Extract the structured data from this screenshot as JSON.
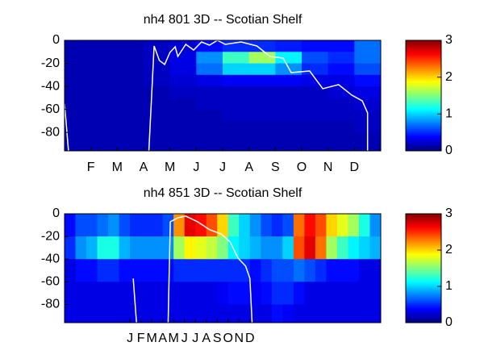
{
  "chart_data": [
    {
      "type": "heatmap",
      "title": "nh4  801 3D   -- Scotian Shelf",
      "colormap": "jet",
      "xlim": [
        0,
        12
      ],
      "ylim": [
        -96,
        0
      ],
      "xticks": [
        {
          "value": 1,
          "label": "F"
        },
        {
          "value": 2,
          "label": "M"
        },
        {
          "value": 3,
          "label": "A"
        },
        {
          "value": 4,
          "label": "M"
        },
        {
          "value": 5,
          "label": "J"
        },
        {
          "value": 6,
          "label": "J"
        },
        {
          "value": 7,
          "label": "A"
        },
        {
          "value": 8,
          "label": "S"
        },
        {
          "value": 9,
          "label": "O"
        },
        {
          "value": 10,
          "label": "N"
        },
        {
          "value": 11,
          "label": "D"
        }
      ],
      "yticks": [
        0,
        -20,
        -40,
        -60,
        -80
      ],
      "clim": [
        0,
        3
      ],
      "cticks": [
        0,
        1,
        2,
        3
      ],
      "xbins": [
        0,
        1,
        2,
        3,
        4,
        5,
        6,
        7,
        8,
        9,
        10,
        11,
        12
      ],
      "ybins": [
        0,
        -10,
        -20,
        -30,
        -40,
        -50,
        -60,
        -70,
        -80,
        -90,
        -96
      ],
      "z": [
        [
          0.15,
          0.15,
          0.15,
          0.2,
          0.25,
          0.4,
          0.5,
          0.5,
          0.45,
          0.4,
          0.4,
          0.7
        ],
        [
          0.15,
          0.15,
          0.15,
          0.2,
          0.3,
          0.8,
          1.3,
          1.6,
          1.1,
          0.6,
          0.5,
          0.7
        ],
        [
          0.15,
          0.15,
          0.15,
          0.2,
          0.3,
          0.7,
          1.0,
          1.0,
          0.8,
          0.5,
          0.4,
          0.6
        ],
        [
          0.15,
          0.15,
          0.15,
          0.2,
          0.25,
          0.3,
          0.35,
          0.35,
          0.35,
          0.3,
          0.3,
          0.4
        ],
        [
          0.15,
          0.15,
          0.15,
          0.15,
          0.2,
          0.2,
          0.2,
          0.2,
          0.2,
          0.2,
          0.25,
          0.3
        ],
        [
          0.15,
          0.15,
          0.15,
          0.15,
          0.15,
          0.2,
          0.2,
          0.2,
          0.2,
          0.2,
          0.2,
          0.25
        ],
        [
          0.15,
          0.15,
          0.15,
          0.15,
          0.15,
          0.15,
          0.2,
          0.2,
          0.2,
          0.2,
          0.2,
          0.2
        ],
        [
          0.15,
          0.15,
          0.15,
          0.15,
          0.15,
          0.15,
          0.15,
          0.15,
          0.15,
          0.15,
          0.15,
          0.2
        ],
        [
          0.15,
          0.15,
          0.15,
          0.15,
          0.15,
          0.15,
          0.15,
          0.15,
          0.15,
          0.15,
          0.15,
          0.15
        ],
        [
          0.15,
          0.15,
          0.15,
          0.15,
          0.15,
          0.15,
          0.15,
          0.15,
          0.15,
          0.15,
          0.15,
          0.15
        ]
      ],
      "contour_color": "#ffffff",
      "contours": [
        {
          "x": [
            0,
            0.15
          ],
          "y": [
            -55,
            -96
          ]
        },
        {
          "x": [
            3.2,
            3.4,
            3.6,
            3.8,
            4.0,
            4.2,
            4.3,
            4.6,
            4.9,
            5.2,
            5.5,
            5.8,
            6.1,
            6.7,
            7.3,
            7.8,
            8.3,
            8.6,
            9.3,
            9.8,
            10.4,
            10.9,
            11.3,
            11.5,
            11.5
          ],
          "y": [
            -96,
            -4.9,
            -17.5,
            -21,
            -10.5,
            -5.6,
            -14,
            -3.5,
            -8.4,
            -1.4,
            -4.2,
            0,
            -3.5,
            -1.4,
            -4.9,
            -14,
            -15.4,
            -28,
            -26.6,
            -42,
            -38.5,
            -47.6,
            -52.6,
            -63,
            -96
          ]
        }
      ]
    },
    {
      "type": "heatmap",
      "title": "nh4  851 3D   -- Scotian Shelf",
      "colormap": "jet",
      "xlim": [
        0,
        29
      ],
      "ylim": [
        -96,
        0
      ],
      "xticks": [
        {
          "value": 6,
          "label": "J"
        },
        {
          "value": 7,
          "label": "F"
        },
        {
          "value": 8,
          "label": "M"
        },
        {
          "value": 9,
          "label": "A"
        },
        {
          "value": 10,
          "label": "M"
        },
        {
          "value": 11,
          "label": "J"
        },
        {
          "value": 12,
          "label": "J"
        },
        {
          "value": 13,
          "label": "A"
        },
        {
          "value": 14,
          "label": "S"
        },
        {
          "value": 15,
          "label": "O"
        },
        {
          "value": 16,
          "label": "N"
        },
        {
          "value": 17,
          "label": "D"
        }
      ],
      "yticks": [
        0,
        -20,
        -40,
        -60,
        -80
      ],
      "clim": [
        0,
        3
      ],
      "cticks": [
        0,
        1,
        2,
        3
      ],
      "xbins": [
        0,
        1,
        2,
        3,
        4,
        5,
        6,
        7,
        8,
        9,
        10,
        11,
        12,
        13,
        14,
        15,
        16,
        17,
        18,
        19,
        20,
        21,
        22,
        23,
        24,
        25,
        26,
        27,
        28,
        29
      ],
      "ybins": [
        0,
        -20,
        -40,
        -60,
        -80,
        -96
      ],
      "z": [
        [
          0.4,
          0.6,
          0.6,
          0.7,
          0.8,
          0.6,
          0.5,
          0.5,
          0.5,
          0.6,
          2.2,
          2.7,
          2.6,
          2.4,
          2.0,
          1.3,
          1.0,
          0.8,
          0.6,
          0.5,
          0.6,
          2.3,
          2.6,
          2.4,
          2.0,
          1.8,
          1.6,
          1.2,
          0.8
        ],
        [
          0.5,
          0.8,
          0.9,
          1.2,
          1.2,
          0.9,
          0.8,
          0.8,
          0.8,
          0.8,
          1.6,
          1.9,
          1.8,
          1.7,
          1.5,
          1.1,
          1.0,
          0.9,
          0.8,
          0.8,
          1.0,
          2.4,
          2.7,
          2.3,
          1.6,
          1.3,
          1.1,
          1.0,
          0.9
        ],
        [
          0.3,
          0.4,
          0.4,
          0.5,
          0.5,
          0.4,
          0.4,
          0.4,
          0.4,
          0.4,
          0.5,
          0.5,
          0.5,
          0.5,
          0.5,
          0.5,
          0.5,
          0.4,
          0.5,
          0.6,
          0.6,
          0.7,
          0.6,
          0.5,
          0.4,
          0.4,
          0.4,
          0.3,
          0.3
        ],
        [
          0.3,
          0.3,
          0.3,
          0.3,
          0.3,
          0.3,
          0.3,
          0.3,
          0.3,
          0.3,
          0.3,
          0.3,
          0.3,
          0.3,
          0.35,
          0.4,
          0.4,
          0.35,
          0.4,
          0.5,
          0.5,
          0.4,
          0.3,
          0.3,
          0.3,
          0.3,
          0.3,
          0.3,
          0.3
        ],
        [
          0.3,
          0.3,
          0.3,
          0.3,
          0.3,
          0.3,
          0.3,
          0.3,
          0.3,
          0.3,
          0.3,
          0.3,
          0.3,
          0.3,
          0.3,
          0.3,
          0.3,
          0.3,
          0.3,
          0.4,
          0.35,
          0.3,
          0.3,
          0.3,
          0.3,
          0.3,
          0.3,
          0.3,
          0.3
        ]
      ],
      "contour_color": "#ffffff",
      "contours": [
        {
          "x": [
            6.3,
            6.6
          ],
          "y": [
            -57,
            -96
          ]
        },
        {
          "x": [
            9.5,
            9.7,
            10.4,
            11.1,
            12.2,
            13.3,
            14.4,
            15.2,
            15.9,
            16.6,
            17.0,
            17.2
          ],
          "y": [
            -96,
            -7,
            -3.6,
            -2,
            -7,
            -14,
            -18,
            -25,
            -39,
            -46,
            -57,
            -96
          ]
        }
      ]
    }
  ]
}
